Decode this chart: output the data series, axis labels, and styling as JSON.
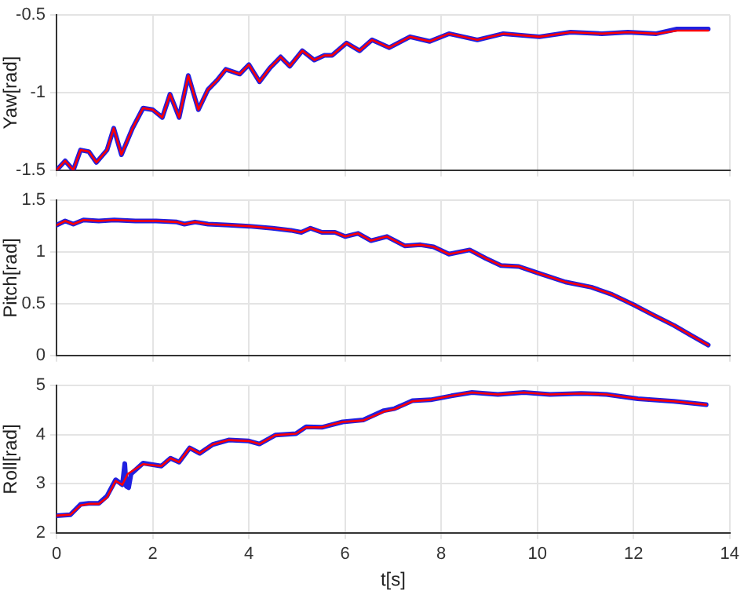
{
  "chart_data": [
    {
      "type": "line",
      "ylabel": "Yaw[rad]",
      "xlim": [
        0,
        14
      ],
      "xticks": [
        0,
        2,
        4,
        6,
        8,
        10,
        12,
        14
      ],
      "ylim": [
        -1.5,
        -0.5
      ],
      "yticks": [
        -1.5,
        -1,
        -0.5
      ],
      "grid": true,
      "legend": false,
      "tick_labels": "y",
      "line_style": "solid",
      "marker": "none",
      "series": [
        {
          "color": "#ff0000",
          "x": [
            0,
            0.18,
            0.35,
            0.5,
            0.67,
            0.83,
            1.05,
            1.19,
            1.35,
            1.58,
            1.8,
            2.0,
            2.2,
            2.36,
            2.55,
            2.74,
            2.95,
            3.15,
            3.34,
            3.52,
            3.81,
            4.0,
            4.22,
            4.44,
            4.66,
            4.85,
            5.11,
            5.36,
            5.57,
            5.73,
            6.03,
            6.3,
            6.56,
            6.92,
            7.35,
            7.76,
            8.16,
            8.75,
            9.29,
            10.04,
            10.69,
            11.34,
            11.88,
            12.47,
            12.9,
            13.55
          ],
          "values": [
            -1.5,
            -1.44,
            -1.5,
            -1.37,
            -1.38,
            -1.45,
            -1.37,
            -1.23,
            -1.4,
            -1.23,
            -1.1,
            -1.11,
            -1.16,
            -1.01,
            -1.16,
            -0.89,
            -1.11,
            -0.98,
            -0.92,
            -0.85,
            -0.88,
            -0.82,
            -0.93,
            -0.84,
            -0.77,
            -0.83,
            -0.73,
            -0.79,
            -0.76,
            -0.76,
            -0.68,
            -0.73,
            -0.66,
            -0.71,
            -0.64,
            -0.67,
            -0.62,
            -0.66,
            -0.62,
            -0.64,
            -0.61,
            -0.62,
            -0.61,
            -0.62,
            -0.6,
            -0.6
          ]
        },
        {
          "color": "#2020e0",
          "x": [
            0,
            0.18,
            0.35,
            0.5,
            0.67,
            0.83,
            1.05,
            1.19,
            1.35,
            1.58,
            1.8,
            2.0,
            2.2,
            2.36,
            2.55,
            2.74,
            2.95,
            3.15,
            3.34,
            3.52,
            3.81,
            4.0,
            4.22,
            4.44,
            4.66,
            4.85,
            5.11,
            5.36,
            5.57,
            5.73,
            6.03,
            6.3,
            6.56,
            6.92,
            7.35,
            7.76,
            8.16,
            8.75,
            9.29,
            10.04,
            10.69,
            11.34,
            11.88,
            12.47,
            12.9,
            13.55
          ],
          "values": [
            -1.5,
            -1.44,
            -1.5,
            -1.37,
            -1.38,
            -1.45,
            -1.37,
            -1.23,
            -1.4,
            -1.23,
            -1.1,
            -1.11,
            -1.16,
            -1.01,
            -1.16,
            -0.89,
            -1.11,
            -0.98,
            -0.92,
            -0.85,
            -0.88,
            -0.82,
            -0.93,
            -0.84,
            -0.77,
            -0.83,
            -0.73,
            -0.79,
            -0.76,
            -0.76,
            -0.68,
            -0.73,
            -0.66,
            -0.71,
            -0.64,
            -0.67,
            -0.62,
            -0.66,
            -0.62,
            -0.64,
            -0.61,
            -0.62,
            -0.61,
            -0.62,
            -0.59,
            -0.59
          ]
        }
      ]
    },
    {
      "type": "line",
      "ylabel": "Pitch[rad]",
      "xlim": [
        0,
        14
      ],
      "xticks": [
        0,
        2,
        4,
        6,
        8,
        10,
        12,
        14
      ],
      "ylim": [
        0,
        1.5
      ],
      "yticks": [
        0,
        0.5,
        1,
        1.5
      ],
      "grid": true,
      "legend": false,
      "tick_labels": "y",
      "line_style": "solid",
      "marker": "none",
      "series": [
        {
          "color": "#ff0000",
          "x": [
            0,
            0.18,
            0.35,
            0.56,
            0.88,
            1.2,
            1.64,
            2.07,
            2.5,
            2.66,
            2.88,
            3.15,
            3.58,
            4.0,
            4.49,
            4.87,
            5.09,
            5.28,
            5.52,
            5.79,
            6.0,
            6.27,
            6.54,
            6.87,
            7.24,
            7.57,
            7.84,
            8.16,
            8.59,
            8.92,
            9.24,
            9.61,
            9.99,
            10.58,
            11.12,
            11.55,
            12.04,
            12.41,
            12.84,
            13.17,
            13.55
          ],
          "values": [
            1.26,
            1.3,
            1.27,
            1.31,
            1.3,
            1.31,
            1.3,
            1.3,
            1.29,
            1.27,
            1.29,
            1.27,
            1.26,
            1.25,
            1.23,
            1.21,
            1.19,
            1.23,
            1.19,
            1.19,
            1.15,
            1.18,
            1.11,
            1.15,
            1.06,
            1.07,
            1.05,
            0.98,
            1.02,
            0.94,
            0.87,
            0.86,
            0.8,
            0.71,
            0.66,
            0.59,
            0.48,
            0.39,
            0.29,
            0.2,
            0.1
          ]
        },
        {
          "color": "#2020e0",
          "x": [
            0,
            0.18,
            0.35,
            0.56,
            0.88,
            1.2,
            1.64,
            2.07,
            2.5,
            2.66,
            2.88,
            3.15,
            3.58,
            4.0,
            4.49,
            4.87,
            5.09,
            5.28,
            5.52,
            5.79,
            6.0,
            6.27,
            6.54,
            6.87,
            7.24,
            7.57,
            7.84,
            8.16,
            8.59,
            8.92,
            9.24,
            9.61,
            9.99,
            10.58,
            11.12,
            11.55,
            12.04,
            12.41,
            12.84,
            13.17,
            13.55
          ],
          "values": [
            1.26,
            1.3,
            1.27,
            1.31,
            1.3,
            1.31,
            1.3,
            1.3,
            1.29,
            1.27,
            1.29,
            1.27,
            1.26,
            1.25,
            1.23,
            1.21,
            1.19,
            1.23,
            1.19,
            1.19,
            1.15,
            1.18,
            1.11,
            1.15,
            1.06,
            1.07,
            1.05,
            0.98,
            1.02,
            0.94,
            0.87,
            0.86,
            0.8,
            0.71,
            0.66,
            0.59,
            0.48,
            0.39,
            0.29,
            0.2,
            0.1
          ]
        }
      ]
    },
    {
      "type": "line",
      "ylabel": "Roll[rad]",
      "xlabel": "t[s]",
      "xlim": [
        0,
        14
      ],
      "xticks": [
        0,
        2,
        4,
        6,
        8,
        10,
        12,
        14
      ],
      "ylim": [
        2,
        5
      ],
      "yticks": [
        2,
        3,
        4,
        5
      ],
      "grid": true,
      "legend": false,
      "line_style": "solid",
      "marker": "none",
      "series": [
        {
          "color": "#ff0000",
          "x": [
            0,
            0.29,
            0.5,
            0.67,
            0.88,
            1.05,
            1.23,
            1.37,
            1.48,
            1.8,
            2.18,
            2.37,
            2.55,
            2.77,
            2.98,
            3.25,
            3.58,
            4.0,
            4.22,
            4.55,
            4.98,
            5.19,
            5.52,
            5.95,
            6.38,
            6.81,
            7.03,
            7.4,
            7.78,
            8.21,
            8.64,
            9.18,
            9.72,
            10.26,
            10.91,
            11.44,
            12.09,
            12.84,
            13.51
          ],
          "values": [
            2.35,
            2.37,
            2.56,
            2.59,
            2.59,
            2.72,
            3.06,
            2.98,
            3.2,
            3.4,
            3.36,
            3.52,
            3.44,
            3.73,
            3.62,
            3.8,
            3.89,
            3.87,
            3.81,
            3.99,
            4.02,
            4.15,
            4.15,
            4.26,
            4.29,
            4.47,
            4.52,
            4.68,
            4.71,
            4.79,
            4.86,
            4.82,
            4.86,
            4.82,
            4.84,
            4.82,
            4.73,
            4.68,
            4.61
          ]
        },
        {
          "color": "#2020e0",
          "x": [
            0,
            0.29,
            0.5,
            0.67,
            0.88,
            1.05,
            1.23,
            1.37,
            1.42,
            1.45,
            1.5,
            1.55,
            1.8,
            2.18,
            2.37,
            2.55,
            2.77,
            2.98,
            3.25,
            3.58,
            4.0,
            4.22,
            4.55,
            4.98,
            5.19,
            5.52,
            5.95,
            6.38,
            6.81,
            7.03,
            7.4,
            7.78,
            8.21,
            8.64,
            9.18,
            9.72,
            10.26,
            10.91,
            11.44,
            12.09,
            12.84,
            13.51
          ],
          "values": [
            2.35,
            2.37,
            2.58,
            2.6,
            2.6,
            2.75,
            3.08,
            2.98,
            3.41,
            2.95,
            2.92,
            3.2,
            3.42,
            3.36,
            3.52,
            3.44,
            3.73,
            3.62,
            3.8,
            3.89,
            3.87,
            3.81,
            3.99,
            4.02,
            4.16,
            4.15,
            4.26,
            4.3,
            4.49,
            4.53,
            4.69,
            4.71,
            4.79,
            4.86,
            4.82,
            4.86,
            4.82,
            4.84,
            4.82,
            4.73,
            4.68,
            4.61
          ]
        }
      ]
    }
  ]
}
